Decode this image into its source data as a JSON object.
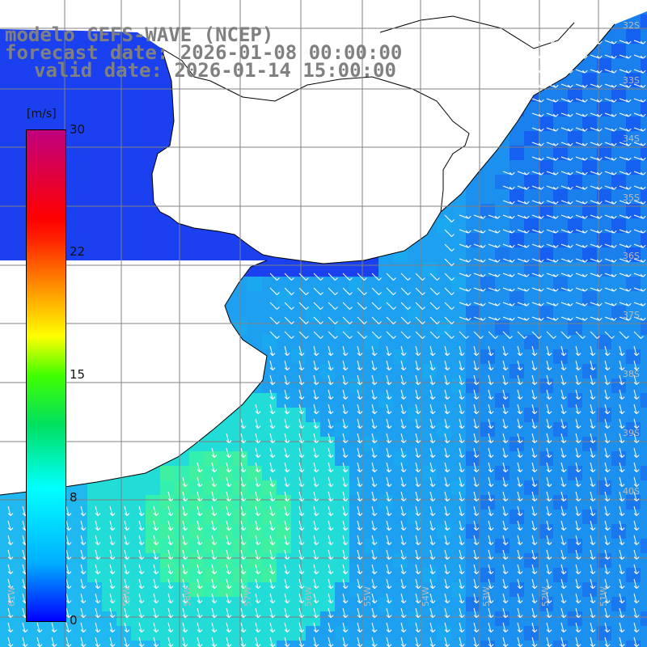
{
  "title": {
    "line1": "modelo GEFS-WAVE (NCEP)",
    "line2": "forecast date: 2026-01-08 00:00:00",
    "line3": "valid date: 2026-01-14 15:00:00"
  },
  "colorbar": {
    "unit": "m/s",
    "ticks": [
      "30",
      "22",
      "15",
      "8",
      "0"
    ],
    "range": [
      0,
      30
    ],
    "colors": [
      "#0000ff",
      "#00b0ff",
      "#00ffff",
      "#00e060",
      "#40ff00",
      "#ffff00",
      "#ff9000",
      "#ff0000",
      "#c00080"
    ]
  },
  "lat_labels": [
    "32S",
    "33S",
    "34S",
    "35S",
    "36S",
    "37S",
    "38S",
    "39S",
    "40S"
  ],
  "lon_labels": [
    "61W",
    "60W",
    "59W",
    "58W",
    "57W",
    "56W",
    "55W",
    "54W",
    "53W",
    "52W",
    "51W"
  ],
  "map": {
    "land_color": "#ffffff",
    "coastline_color": "#000000",
    "grid_color": "#808080",
    "wind_arrow_color": "#ffffff",
    "field": "wind speed at 10 m with direction arrows"
  }
}
